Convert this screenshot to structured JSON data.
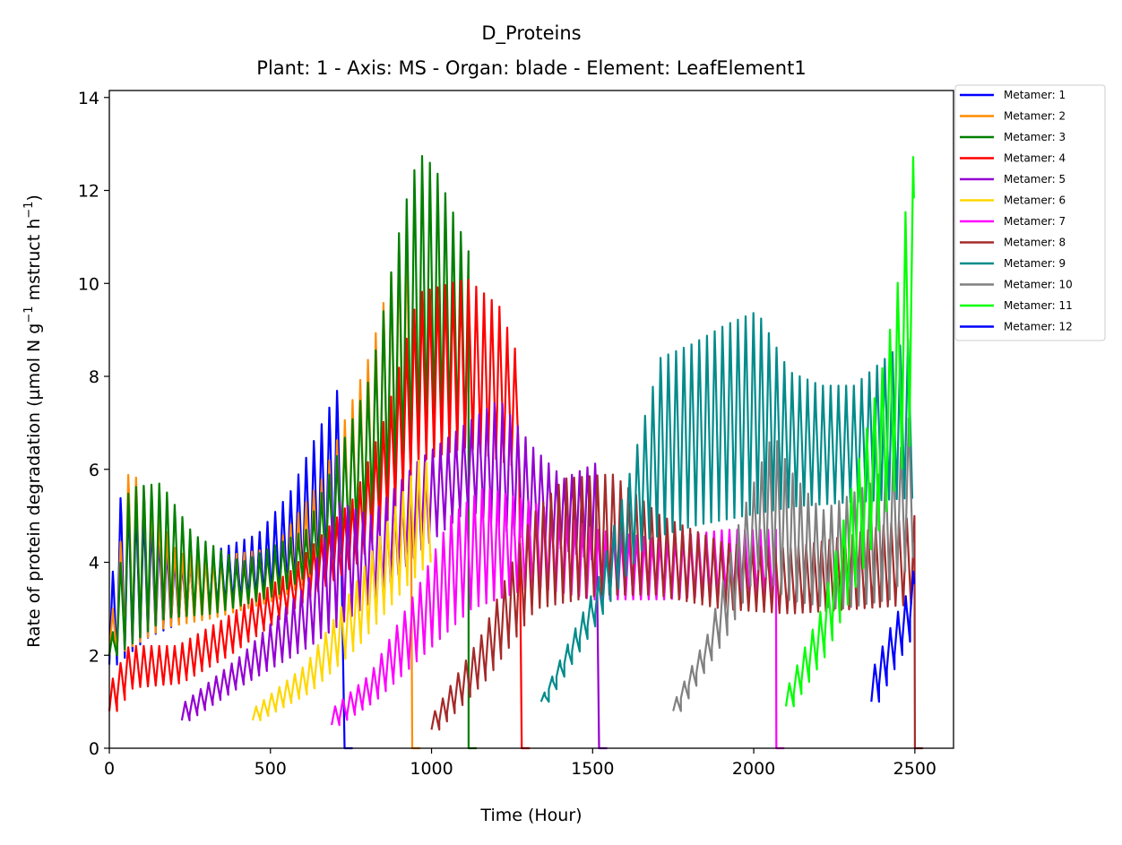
{
  "chart_data": {
    "type": "line",
    "title": "D_Proteins",
    "subtitle": "Plant: 1 - Axis: MS - Organ: blade - Element: LeafElement1",
    "xlabel": "Time (Hour)",
    "ylabel_parts": [
      "Rate of protein degradation (µmol N g",
      "−1",
      " mstruct h",
      "−1",
      ")"
    ],
    "xlim": [
      0,
      2620
    ],
    "ylim": [
      0,
      14.15
    ],
    "xticks": [
      0,
      500,
      1000,
      1500,
      2000,
      2500
    ],
    "yticks": [
      0,
      2,
      4,
      6,
      8,
      10,
      12,
      14
    ],
    "legend_position": "outside-right-top",
    "period": 24,
    "series": [
      {
        "name": "Metamer: 1",
        "color": "#0000ff",
        "lo": [
          [
            0,
            1.8
          ],
          [
            100,
            2.4
          ],
          [
            300,
            3.0
          ],
          [
            500,
            3.3
          ],
          [
            650,
            3.8
          ],
          [
            730,
            4.2
          ]
        ],
        "hi": [
          [
            0,
            3.8
          ],
          [
            20,
            5.4
          ],
          [
            100,
            5.0
          ],
          [
            200,
            4.0
          ],
          [
            300,
            4.2
          ],
          [
            450,
            4.6
          ],
          [
            550,
            5.5
          ],
          [
            650,
            7.0
          ],
          [
            730,
            8.2
          ]
        ],
        "x0": 0,
        "x1": 730,
        "drop": true
      },
      {
        "name": "Metamer: 2",
        "color": "#ff8c00",
        "lo": [
          [
            0,
            2.0
          ],
          [
            150,
            2.6
          ],
          [
            300,
            2.8
          ],
          [
            500,
            3.2
          ],
          [
            700,
            4.0
          ],
          [
            900,
            5.5
          ],
          [
            940,
            6.0
          ]
        ],
        "hi": [
          [
            0,
            3.0
          ],
          [
            50,
            6.0
          ],
          [
            100,
            5.6
          ],
          [
            200,
            4.2
          ],
          [
            300,
            4.1
          ],
          [
            500,
            4.3
          ],
          [
            650,
            5.8
          ],
          [
            800,
            8.5
          ],
          [
            900,
            11.2
          ],
          [
            940,
            11.0
          ]
        ],
        "x0": 0,
        "x1": 940,
        "drop": true
      },
      {
        "name": "Metamer: 3",
        "color": "#008000",
        "lo": [
          [
            0,
            2.0
          ],
          [
            150,
            2.8
          ],
          [
            300,
            2.9
          ],
          [
            500,
            3.3
          ],
          [
            700,
            4.2
          ],
          [
            900,
            6.0
          ],
          [
            1000,
            7.0
          ],
          [
            1115,
            6.5
          ]
        ],
        "hi": [
          [
            0,
            2.5
          ],
          [
            50,
            5.6
          ],
          [
            150,
            5.7
          ],
          [
            250,
            4.6
          ],
          [
            400,
            4.0
          ],
          [
            600,
            4.7
          ],
          [
            800,
            8.0
          ],
          [
            900,
            11.5
          ],
          [
            950,
            12.8
          ],
          [
            1000,
            12.5
          ],
          [
            1115,
            10.5
          ]
        ],
        "x0": 0,
        "x1": 1115,
        "drop": true
      },
      {
        "name": "Metamer: 4",
        "color": "#ff0000",
        "lo": [
          [
            0,
            0.8
          ],
          [
            50,
            1.3
          ],
          [
            200,
            1.4
          ],
          [
            350,
            2.0
          ],
          [
            550,
            3.0
          ],
          [
            750,
            4.0
          ],
          [
            850,
            5.0
          ],
          [
            950,
            6.2
          ],
          [
            1100,
            6.5
          ],
          [
            1280,
            6.0
          ]
        ],
        "hi": [
          [
            0,
            1.5
          ],
          [
            50,
            2.2
          ],
          [
            200,
            2.2
          ],
          [
            350,
            2.8
          ],
          [
            550,
            3.8
          ],
          [
            750,
            5.4
          ],
          [
            850,
            7.2
          ],
          [
            950,
            9.8
          ],
          [
            1100,
            10.1
          ],
          [
            1200,
            9.5
          ],
          [
            1280,
            8.0
          ]
        ],
        "x0": 0,
        "x1": 1280,
        "drop": true
      },
      {
        "name": "Metamer: 5",
        "color": "#9400d3",
        "lo": [
          [
            225,
            0.6
          ],
          [
            400,
            1.4
          ],
          [
            600,
            2.2
          ],
          [
            800,
            3.2
          ],
          [
            950,
            4.3
          ],
          [
            1100,
            5.2
          ],
          [
            1250,
            4.6
          ],
          [
            1400,
            4.3
          ],
          [
            1520,
            4.0
          ]
        ],
        "hi": [
          [
            225,
            1.0
          ],
          [
            400,
            2.0
          ],
          [
            600,
            3.5
          ],
          [
            700,
            5.3
          ],
          [
            800,
            5.0
          ],
          [
            950,
            6.2
          ],
          [
            1100,
            7.0
          ],
          [
            1200,
            7.5
          ],
          [
            1300,
            6.5
          ],
          [
            1400,
            5.8
          ],
          [
            1520,
            6.2
          ]
        ],
        "x0": 225,
        "x1": 1520,
        "drop": true
      },
      {
        "name": "Metamer: 6",
        "color": "#ffd700",
        "lo": [
          [
            445,
            0.6
          ],
          [
            600,
            1.2
          ],
          [
            750,
            2.2
          ],
          [
            900,
            3.5
          ],
          [
            1000,
            4.2
          ]
        ],
        "hi": [
          [
            445,
            0.9
          ],
          [
            600,
            1.8
          ],
          [
            750,
            3.5
          ],
          [
            900,
            5.5
          ],
          [
            950,
            6.2
          ],
          [
            1000,
            6.1
          ]
        ],
        "x0": 445,
        "x1": 1000,
        "drop": false
      },
      {
        "name": "Metamer: 7",
        "color": "#ff00ff",
        "lo": [
          [
            690,
            0.5
          ],
          [
            800,
            1.0
          ],
          [
            950,
            2.0
          ],
          [
            1100,
            3.0
          ],
          [
            1300,
            3.5
          ],
          [
            1500,
            3.2
          ],
          [
            1700,
            3.2
          ],
          [
            1900,
            3.3
          ],
          [
            2070,
            3.3
          ]
        ],
        "hi": [
          [
            690,
            0.9
          ],
          [
            800,
            1.6
          ],
          [
            950,
            3.5
          ],
          [
            1050,
            5.0
          ],
          [
            1150,
            5.6
          ],
          [
            1300,
            5.3
          ],
          [
            1500,
            4.7
          ],
          [
            1700,
            4.5
          ],
          [
            1900,
            4.7
          ],
          [
            2070,
            4.7
          ]
        ],
        "x0": 690,
        "x1": 2070,
        "drop": true
      },
      {
        "name": "Metamer: 8",
        "color": "#a52a2a",
        "lo": [
          [
            1000,
            0.4
          ],
          [
            1150,
            1.5
          ],
          [
            1300,
            3.0
          ],
          [
            1500,
            3.3
          ],
          [
            1700,
            3.3
          ],
          [
            1900,
            3.0
          ],
          [
            2100,
            2.9
          ],
          [
            2300,
            3.0
          ],
          [
            2490,
            3.1
          ]
        ],
        "hi": [
          [
            1000,
            0.8
          ],
          [
            1150,
            2.5
          ],
          [
            1300,
            5.0
          ],
          [
            1400,
            5.8
          ],
          [
            1550,
            5.9
          ],
          [
            1700,
            5.0
          ],
          [
            1900,
            4.4
          ],
          [
            2100,
            4.3
          ],
          [
            2300,
            4.6
          ],
          [
            2490,
            5.0
          ]
        ],
        "x0": 1000,
        "x1": 2500,
        "drop": true
      },
      {
        "name": "Metamer: 9",
        "color": "#008b8b",
        "lo": [
          [
            1340,
            1.0
          ],
          [
            1500,
            2.8
          ],
          [
            1650,
            4.5
          ],
          [
            1800,
            4.8
          ],
          [
            1950,
            5.0
          ],
          [
            2100,
            5.2
          ],
          [
            2300,
            5.3
          ],
          [
            2500,
            5.4
          ]
        ],
        "hi": [
          [
            1340,
            1.2
          ],
          [
            1500,
            3.5
          ],
          [
            1600,
            5.8
          ],
          [
            1700,
            8.4
          ],
          [
            1800,
            8.7
          ],
          [
            1900,
            9.1
          ],
          [
            2000,
            9.4
          ],
          [
            2100,
            8.1
          ],
          [
            2200,
            7.8
          ],
          [
            2300,
            7.8
          ],
          [
            2400,
            8.4
          ],
          [
            2500,
            9.0
          ]
        ],
        "x0": 1340,
        "x1": 2500,
        "drop": false
      },
      {
        "name": "Metamer: 10",
        "color": "#808080",
        "lo": [
          [
            1750,
            0.8
          ],
          [
            1900,
            2.5
          ],
          [
            2000,
            4.0
          ],
          [
            2100,
            3.2
          ],
          [
            2250,
            3.0
          ],
          [
            2400,
            3.2
          ],
          [
            2500,
            4.5
          ]
        ],
        "hi": [
          [
            1750,
            1.1
          ],
          [
            1850,
            2.5
          ],
          [
            1950,
            5.0
          ],
          [
            2050,
            6.8
          ],
          [
            2100,
            6.0
          ],
          [
            2200,
            5.1
          ],
          [
            2350,
            5.7
          ],
          [
            2450,
            6.5
          ],
          [
            2500,
            8.0
          ]
        ],
        "x0": 1750,
        "x1": 2500,
        "drop": false
      },
      {
        "name": "Metamer: 11",
        "color": "#00ff00",
        "lo": [
          [
            2100,
            0.9
          ],
          [
            2200,
            2.0
          ],
          [
            2300,
            3.6
          ],
          [
            2400,
            5.3
          ],
          [
            2460,
            6.5
          ],
          [
            2500,
            7.5
          ]
        ],
        "hi": [
          [
            2100,
            1.4
          ],
          [
            2200,
            3.0
          ],
          [
            2300,
            5.8
          ],
          [
            2400,
            8.5
          ],
          [
            2450,
            10.6
          ],
          [
            2480,
            13.4
          ],
          [
            2500,
            10.0
          ]
        ],
        "x0": 2100,
        "x1": 2500,
        "drop": false
      },
      {
        "name": "Metamer: 12",
        "color": "#0000ff",
        "lo": [
          [
            2365,
            1.0
          ],
          [
            2420,
            1.8
          ],
          [
            2470,
            2.4
          ],
          [
            2500,
            3.2
          ]
        ],
        "hi": [
          [
            2365,
            1.8
          ],
          [
            2420,
            2.7
          ],
          [
            2470,
            3.4
          ],
          [
            2500,
            4.2
          ]
        ],
        "x0": 2365,
        "x1": 2500,
        "drop": false
      }
    ]
  }
}
